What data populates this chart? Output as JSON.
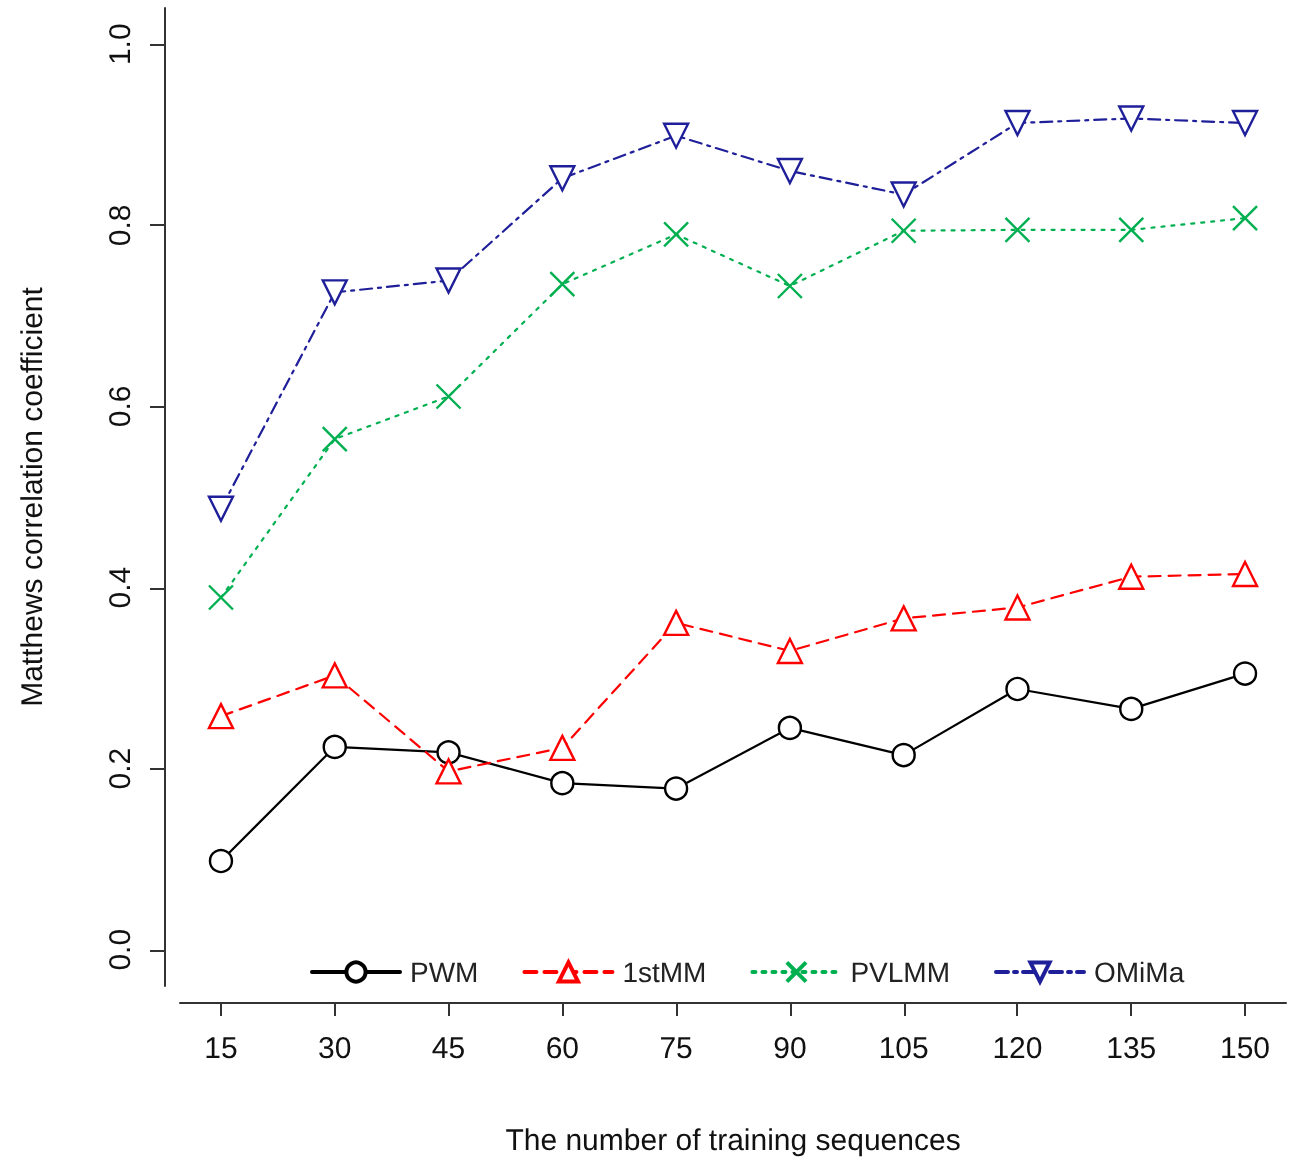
{
  "chart_data": {
    "type": "line",
    "xlabel": "The number of training sequences",
    "ylabel": "Matthews correlation coefficient",
    "x": [
      15,
      30,
      45,
      60,
      75,
      90,
      105,
      120,
      135,
      150
    ],
    "series": [
      {
        "name": "PWM",
        "color": "#000000",
        "marker": "circle",
        "line_style": "solid",
        "values": [
          0.098,
          0.224,
          0.218,
          0.184,
          0.178,
          0.245,
          0.215,
          0.288,
          0.266,
          0.305
        ]
      },
      {
        "name": "1stMM",
        "color": "#ff0000",
        "marker": "triangle",
        "line_style": "dashed",
        "values": [
          0.258,
          0.303,
          0.197,
          0.223,
          0.361,
          0.33,
          0.366,
          0.378,
          0.412,
          0.415
        ]
      },
      {
        "name": "PVLMM",
        "color": "#00b050",
        "marker": "cross",
        "line_style": "dotted",
        "values": [
          0.389,
          0.564,
          0.611,
          0.735,
          0.79,
          0.733,
          0.794,
          0.795,
          0.795,
          0.808
        ]
      },
      {
        "name": "OMiMa",
        "color": "#1f1f9a",
        "marker": "triangle_down",
        "line_style": "dashdot",
        "values": [
          0.487,
          0.726,
          0.739,
          0.852,
          0.899,
          0.86,
          0.834,
          0.913,
          0.918,
          0.913
        ]
      }
    ],
    "xlim": [
      9.6,
      155.4
    ],
    "xticks": [
      15,
      30,
      45,
      60,
      75,
      90,
      105,
      120,
      135,
      150
    ],
    "ylim": [
      -0.04,
      1.04
    ],
    "yticks": [
      {
        "value": 0,
        "label": "0.0"
      },
      {
        "value": 0.2,
        "label": "0.2"
      },
      {
        "value": 0.4,
        "label": "0.4"
      },
      {
        "value": 0.6,
        "label": "0.6"
      },
      {
        "value": 0.8,
        "label": "0.8"
      },
      {
        "value": 1,
        "label": "1.0"
      }
    ],
    "grid": false,
    "legend": "bottom"
  }
}
